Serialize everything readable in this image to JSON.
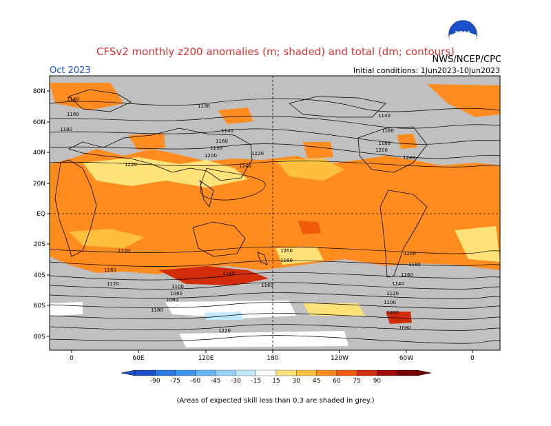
{
  "header": {
    "title": "CFSv2 monthly z200 anomalies (m; shaded) and total (dm; contours)",
    "month": "Oct 2023",
    "initial_conditions": "Initial conditions: 1Jun2023-10Jun2023",
    "agency": "NWS/NCEP/CPC",
    "logo_text": "NOAA"
  },
  "map": {
    "lon_ticks": [
      "0",
      "60E",
      "120E",
      "180",
      "120W",
      "60W",
      "0"
    ],
    "lat_ticks": [
      "80N",
      "60N",
      "40N",
      "20N",
      "EQ",
      "20S",
      "40S",
      "60S",
      "80S"
    ],
    "contour_labels": [
      "1140",
      "1160",
      "1180",
      "1130",
      "1140",
      "1160",
      "1150",
      "1200",
      "1220",
      "1240",
      "1220",
      "1140",
      "1160",
      "1180",
      "1200",
      "1220",
      "1220",
      "1200",
      "1180",
      "1160",
      "1140",
      "1120",
      "1100",
      "1080",
      "1080",
      "1180",
      "1160",
      "1220",
      "1200",
      "1180",
      "1160",
      "1140",
      "1120",
      "1100",
      "1080",
      "1080"
    ],
    "colors": {
      "grey_low_skill": "#c0c0c0",
      "land_outline": "#000000"
    }
  },
  "colorbar": {
    "ticks": [
      "-90",
      "-75",
      "-60",
      "-45",
      "-30",
      "-15",
      "15",
      "30",
      "45",
      "60",
      "75",
      "90"
    ],
    "colors": [
      "#1a4fc8",
      "#2878e8",
      "#3c96f0",
      "#64b4f8",
      "#96d2fa",
      "#c0eaff",
      "#ffffff",
      "#ffe27a",
      "#ffc040",
      "#ff8c1e",
      "#f05a0a",
      "#d22d0a",
      "#a00a0a",
      "#780000"
    ]
  },
  "footer": {
    "note": "(Areas of expected skill less than 0.3 are shaded in grey.)"
  }
}
